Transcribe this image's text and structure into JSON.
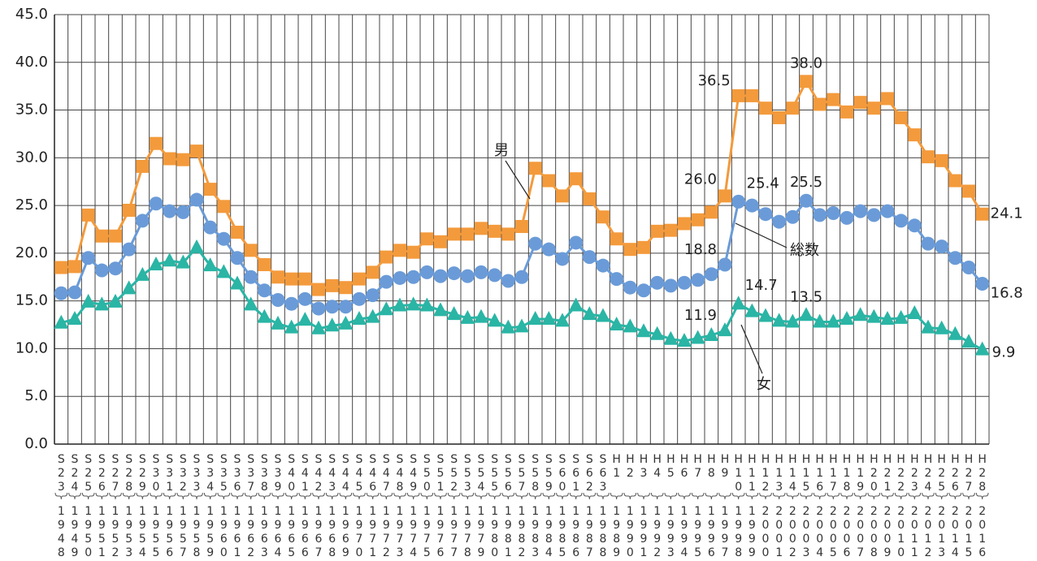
{
  "chart_data": {
    "type": "line",
    "categories": [
      "S23",
      "S24",
      "S25",
      "S26",
      "S27",
      "S28",
      "S29",
      "S30",
      "S31",
      "S32",
      "S33",
      "S34",
      "S35",
      "S36",
      "S37",
      "S38",
      "S39",
      "S40",
      "S41",
      "S42",
      "S43",
      "S44",
      "S45",
      "S46",
      "S47",
      "S48",
      "S49",
      "S50",
      "S51",
      "S52",
      "S53",
      "S54",
      "S55",
      "S56",
      "S57",
      "S58",
      "S59",
      "S60",
      "S61",
      "S62",
      "S63",
      "H1",
      "H2",
      "H3",
      "H4",
      "H5",
      "H6",
      "H7",
      "H8",
      "H9",
      "H10",
      "H11",
      "H12",
      "H13",
      "H14",
      "H15",
      "H16",
      "H17",
      "H18",
      "H19",
      "H20",
      "H21",
      "H22",
      "H23",
      "H24",
      "H25",
      "H26",
      "H27",
      "H28"
    ],
    "years": [
      "1948",
      "1949",
      "1950",
      "1951",
      "1952",
      "1953",
      "1954",
      "1955",
      "1956",
      "1957",
      "1958",
      "1959",
      "1960",
      "1961",
      "1962",
      "1963",
      "1964",
      "1965",
      "1966",
      "1967",
      "1968",
      "1969",
      "1970",
      "1971",
      "1972",
      "1973",
      "1974",
      "1975",
      "1976",
      "1977",
      "1978",
      "1979",
      "1980",
      "1981",
      "1982",
      "1983",
      "1984",
      "1985",
      "1986",
      "1987",
      "1988",
      "1989",
      "1990",
      "1991",
      "1992",
      "1993",
      "1994",
      "1995",
      "1996",
      "1997",
      "1998",
      "1999",
      "2000",
      "2001",
      "2002",
      "2003",
      "2004",
      "2005",
      "2006",
      "2007",
      "2008",
      "2009",
      "2010",
      "2011",
      "2012",
      "2013",
      "2014",
      "2015",
      "2016"
    ],
    "ylim": [
      0,
      45
    ],
    "yticks": [
      {
        "value": 0,
        "label": "0.0"
      },
      {
        "value": 5,
        "label": "5.0"
      },
      {
        "value": 10,
        "label": "10.0"
      },
      {
        "value": 15,
        "label": "15.0"
      },
      {
        "value": 20,
        "label": "20.0"
      },
      {
        "value": 25,
        "label": "25.0"
      },
      {
        "value": 30,
        "label": "30.0"
      },
      {
        "value": 35,
        "label": "35.0"
      },
      {
        "value": 40,
        "label": "40.0"
      },
      {
        "value": 45,
        "label": "45.0"
      }
    ],
    "grid": true,
    "series": [
      {
        "name": "男",
        "color": "#f39a3c",
        "marker": "square",
        "values": [
          18.5,
          18.6,
          24.0,
          21.8,
          21.8,
          24.5,
          29.1,
          31.5,
          29.9,
          29.8,
          30.7,
          26.7,
          24.9,
          22.2,
          20.3,
          18.8,
          17.5,
          17.3,
          17.3,
          16.2,
          16.6,
          16.4,
          17.3,
          18.0,
          19.6,
          20.3,
          20.1,
          21.5,
          21.2,
          22.0,
          22.0,
          22.6,
          22.3,
          22.0,
          22.8,
          28.9,
          27.6,
          26.0,
          27.8,
          25.7,
          23.8,
          21.5,
          20.4,
          20.6,
          22.3,
          22.4,
          23.1,
          23.5,
          24.3,
          26.0,
          36.5,
          36.5,
          35.2,
          34.2,
          35.2,
          38.0,
          35.6,
          36.1,
          34.8,
          35.8,
          35.2,
          36.2,
          34.2,
          32.4,
          30.1,
          29.7,
          27.6,
          26.5,
          24.1
        ],
        "value_labels": [
          null,
          null,
          null,
          null,
          null,
          null,
          null,
          null,
          null,
          null,
          null,
          null,
          null,
          null,
          null,
          null,
          null,
          null,
          null,
          null,
          null,
          null,
          null,
          null,
          null,
          null,
          null,
          null,
          null,
          null,
          null,
          null,
          null,
          null,
          null,
          null,
          null,
          null,
          null,
          null,
          null,
          null,
          null,
          null,
          null,
          null,
          null,
          null,
          null,
          "26.0",
          "36.5",
          null,
          null,
          null,
          null,
          "38.0",
          null,
          null,
          null,
          null,
          null,
          null,
          null,
          null,
          null,
          null,
          null,
          null,
          "24.1"
        ]
      },
      {
        "name": "総数",
        "color": "#6a9bd8",
        "marker": "circle",
        "values": [
          15.8,
          15.9,
          19.5,
          18.2,
          18.4,
          20.4,
          23.4,
          25.2,
          24.4,
          24.3,
          25.6,
          22.7,
          21.5,
          19.5,
          17.5,
          16.1,
          15.1,
          14.7,
          15.2,
          14.2,
          14.4,
          14.4,
          15.2,
          15.6,
          17.0,
          17.4,
          17.5,
          18.0,
          17.6,
          17.9,
          17.6,
          18.0,
          17.7,
          17.1,
          17.5,
          21.0,
          20.4,
          19.4,
          21.1,
          19.6,
          18.7,
          17.3,
          16.4,
          16.1,
          16.9,
          16.6,
          16.9,
          17.2,
          17.8,
          18.8,
          25.4,
          25.0,
          24.1,
          23.3,
          23.8,
          25.5,
          24.0,
          24.2,
          23.7,
          24.4,
          24.0,
          24.4,
          23.4,
          22.9,
          21.0,
          20.7,
          19.5,
          18.5,
          16.8
        ],
        "value_labels": [
          null,
          null,
          null,
          null,
          null,
          null,
          null,
          null,
          null,
          null,
          null,
          null,
          null,
          null,
          null,
          null,
          null,
          null,
          null,
          null,
          null,
          null,
          null,
          null,
          null,
          null,
          null,
          null,
          null,
          null,
          null,
          null,
          null,
          null,
          null,
          null,
          null,
          null,
          null,
          null,
          null,
          null,
          null,
          null,
          null,
          null,
          null,
          null,
          null,
          "18.8",
          "25.4",
          null,
          null,
          null,
          null,
          "25.5",
          null,
          null,
          null,
          null,
          null,
          null,
          null,
          null,
          null,
          null,
          null,
          null,
          "16.8"
        ]
      },
      {
        "name": "女",
        "color": "#2ab5a5",
        "marker": "triangle",
        "values": [
          12.7,
          13.1,
          14.9,
          14.6,
          14.9,
          16.3,
          17.7,
          18.8,
          19.2,
          19.0,
          20.6,
          18.7,
          18.0,
          16.8,
          14.6,
          13.3,
          12.6,
          12.2,
          13.0,
          12.1,
          12.4,
          12.6,
          13.1,
          13.3,
          14.1,
          14.5,
          14.6,
          14.5,
          14.0,
          13.6,
          13.2,
          13.3,
          12.9,
          12.2,
          12.3,
          13.1,
          13.1,
          12.9,
          14.5,
          13.6,
          13.4,
          12.5,
          12.3,
          11.8,
          11.5,
          11.0,
          10.8,
          11.1,
          11.4,
          11.9,
          14.7,
          13.9,
          13.4,
          12.9,
          12.8,
          13.5,
          12.8,
          12.8,
          13.1,
          13.5,
          13.3,
          13.1,
          13.2,
          13.7,
          12.2,
          12.1,
          11.5,
          10.7,
          9.9
        ],
        "value_labels": [
          null,
          null,
          null,
          null,
          null,
          null,
          null,
          null,
          null,
          null,
          null,
          null,
          null,
          null,
          null,
          null,
          null,
          null,
          null,
          null,
          null,
          null,
          null,
          null,
          null,
          null,
          null,
          null,
          null,
          null,
          null,
          null,
          null,
          null,
          null,
          null,
          null,
          null,
          null,
          null,
          null,
          null,
          null,
          null,
          null,
          null,
          null,
          null,
          null,
          "11.9",
          "14.7",
          null,
          null,
          null,
          null,
          "13.5",
          null,
          null,
          null,
          null,
          null,
          null,
          null,
          null,
          null,
          null,
          null,
          null,
          "9.9"
        ]
      }
    ]
  }
}
